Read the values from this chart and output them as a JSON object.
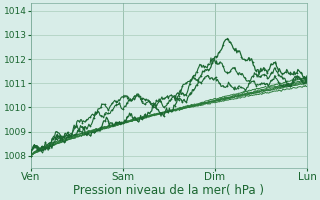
{
  "xlabel": "Pression niveau de la mer( hPa )",
  "bg_color": "#cce8e0",
  "plot_bg_color": "#d8ede8",
  "grid_color": "#aaccbb",
  "line_color_dark": "#1a6630",
  "line_color_mid": "#2a7a3a",
  "xlim": [
    0,
    72
  ],
  "ylim": [
    1007.5,
    1014.3
  ],
  "yticks": [
    1008,
    1009,
    1010,
    1011,
    1012,
    1013,
    1014
  ],
  "xtick_positions": [
    0,
    24,
    48,
    72
  ],
  "xtick_labels": [
    "Ven",
    "Sam",
    "Dim",
    "Lun"
  ],
  "xlabel_fontsize": 8.5,
  "ytick_fontsize": 6.5,
  "xtick_fontsize": 7.5
}
